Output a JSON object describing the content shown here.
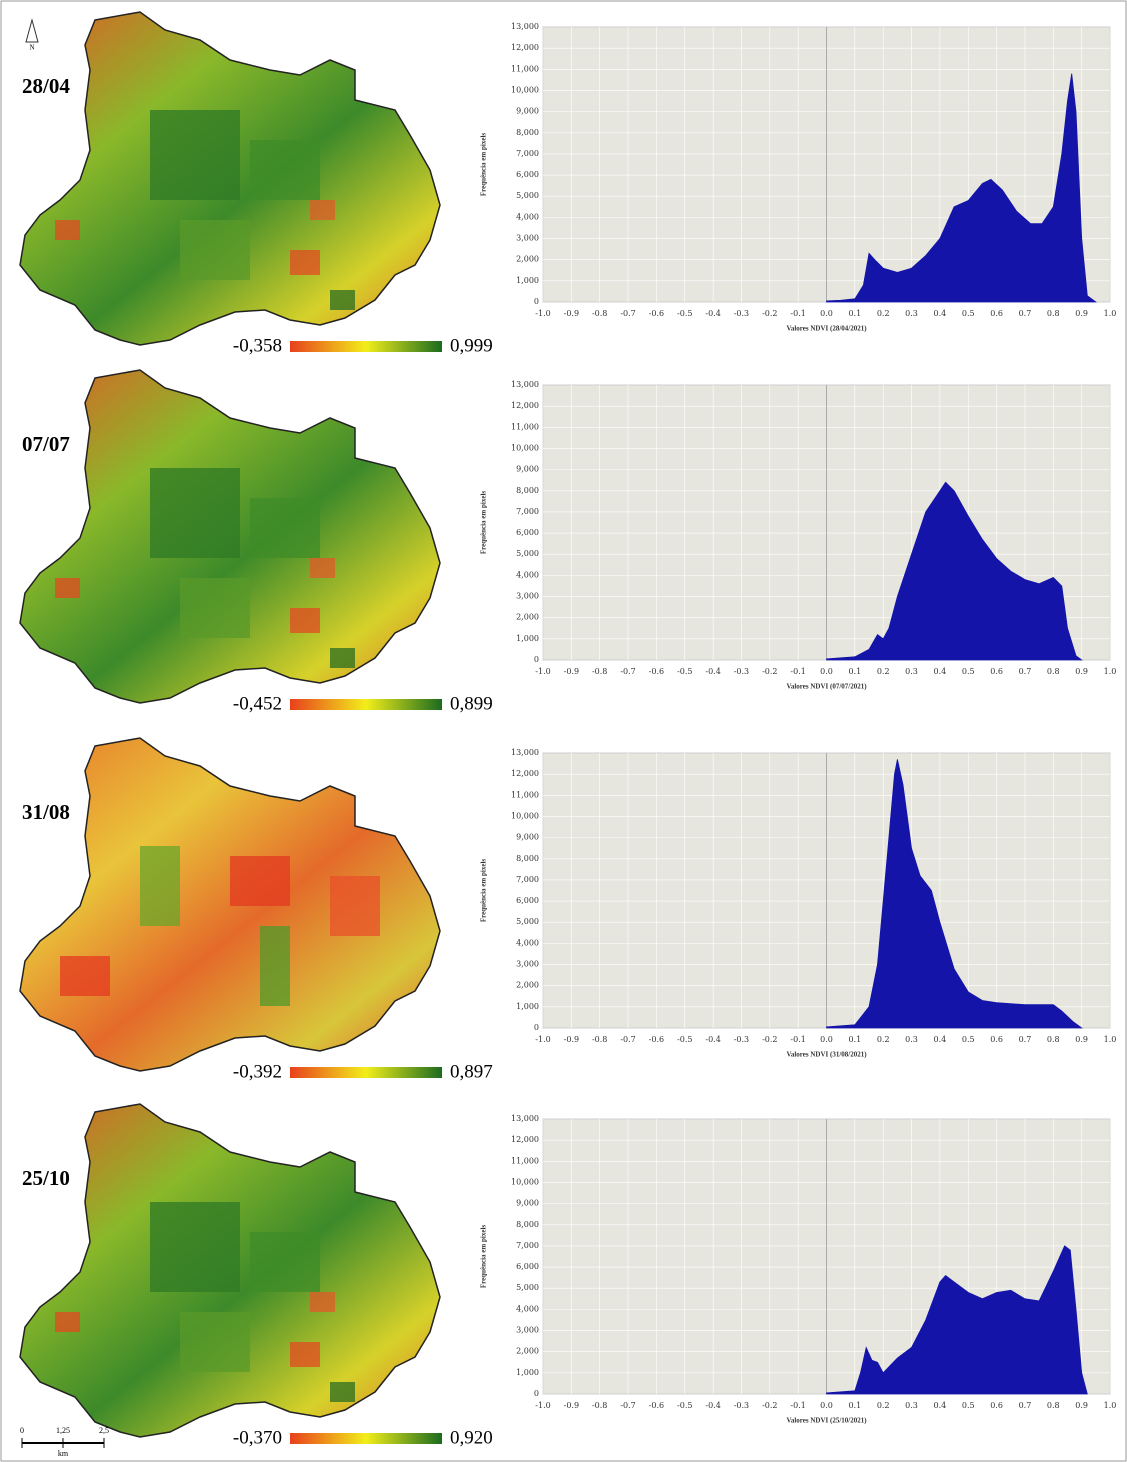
{
  "chart_data": [
    {
      "type": "area",
      "xlabel": "Valores NDVI (28/04/2021)",
      "ylabel": "Frequência em pixels",
      "color": "#1414a8",
      "grid": true,
      "xlim": [
        -1,
        1
      ],
      "ylim": [
        0,
        13000
      ],
      "xticks": [
        {
          "value": -1,
          "label": "-1.0"
        },
        -0.9,
        -0.8,
        -0.7,
        -0.6,
        -0.5,
        -0.4,
        -0.3,
        -0.2,
        -0.1,
        {
          "value": 0,
          "label": "0.0"
        },
        0.1,
        0.2,
        0.3,
        0.4,
        0.5,
        0.6,
        0.7,
        0.8,
        0.9,
        {
          "value": 1,
          "label": "1.0"
        }
      ],
      "yticks": [
        0,
        {
          "value": 1000,
          "label": "1,000"
        },
        {
          "value": 2000,
          "label": "2,000"
        },
        {
          "value": 3000,
          "label": "3,000"
        },
        {
          "value": 4000,
          "label": "4,000"
        },
        {
          "value": 5000,
          "label": "5,000"
        },
        {
          "value": 6000,
          "label": "6,000"
        },
        {
          "value": 7000,
          "label": "7,000"
        },
        {
          "value": 8000,
          "label": "8,000"
        },
        {
          "value": 9000,
          "label": "9,000"
        },
        {
          "value": 10000,
          "label": "10,000"
        },
        {
          "value": 11000,
          "label": "11,000"
        },
        {
          "value": 12000,
          "label": "12,000"
        },
        {
          "value": 13000,
          "label": "13,000"
        }
      ],
      "x": [
        0,
        0.05,
        0.1,
        0.13,
        0.15,
        0.17,
        0.2,
        0.25,
        0.3,
        0.35,
        0.4,
        0.45,
        0.5,
        0.55,
        0.58,
        0.62,
        0.67,
        0.72,
        0.76,
        0.8,
        0.83,
        0.85,
        0.865,
        0.88,
        0.9,
        0.92,
        0.95
      ],
      "values": [
        50,
        80,
        150,
        800,
        2300,
        2000,
        1600,
        1400,
        1600,
        2200,
        3000,
        4500,
        4800,
        5600,
        5800,
        5300,
        4300,
        3700,
        3700,
        4500,
        7000,
        9500,
        10800,
        9000,
        3000,
        300,
        0
      ]
    },
    {
      "type": "area",
      "xlabel": "Valores NDVI (07/07/2021)",
      "ylabel": "Frequência em pixels",
      "color": "#1414a8",
      "grid": true,
      "xlim": [
        -1,
        1
      ],
      "ylim": [
        0,
        13000
      ],
      "xticks": [
        {
          "value": -1,
          "label": "-1.0"
        },
        -0.9,
        -0.8,
        -0.7,
        -0.6,
        -0.5,
        -0.4,
        -0.3,
        -0.2,
        -0.1,
        {
          "value": 0,
          "label": "0.0"
        },
        0.1,
        0.2,
        0.3,
        0.4,
        0.5,
        0.6,
        0.7,
        0.8,
        0.9,
        {
          "value": 1,
          "label": "1.0"
        }
      ],
      "yticks": [
        0,
        {
          "value": 1000,
          "label": "1,000"
        },
        {
          "value": 2000,
          "label": "2,000"
        },
        {
          "value": 3000,
          "label": "3,000"
        },
        {
          "value": 4000,
          "label": "4,000"
        },
        {
          "value": 5000,
          "label": "5,000"
        },
        {
          "value": 6000,
          "label": "6,000"
        },
        {
          "value": 7000,
          "label": "7,000"
        },
        {
          "value": 8000,
          "label": "8,000"
        },
        {
          "value": 9000,
          "label": "9,000"
        },
        {
          "value": 10000,
          "label": "10,000"
        },
        {
          "value": 11000,
          "label": "11,000"
        },
        {
          "value": 12000,
          "label": "12,000"
        },
        {
          "value": 13000,
          "label": "13,000"
        }
      ],
      "x": [
        0,
        0.1,
        0.15,
        0.18,
        0.2,
        0.22,
        0.25,
        0.3,
        0.35,
        0.4,
        0.42,
        0.45,
        0.5,
        0.55,
        0.6,
        0.65,
        0.7,
        0.75,
        0.8,
        0.83,
        0.85,
        0.88,
        0.9
      ],
      "values": [
        50,
        150,
        500,
        1200,
        1000,
        1500,
        3000,
        5000,
        7000,
        8000,
        8400,
        8000,
        6800,
        5700,
        4800,
        4200,
        3800,
        3600,
        3900,
        3500,
        1500,
        200,
        0
      ]
    },
    {
      "type": "area",
      "xlabel": "Valores NDVI (31/08/2021)",
      "ylabel": "Frequência em pixels",
      "color": "#1414a8",
      "grid": true,
      "xlim": [
        -1,
        1
      ],
      "ylim": [
        0,
        13000
      ],
      "xticks": [
        {
          "value": -1,
          "label": "-1.0"
        },
        -0.9,
        -0.8,
        -0.7,
        -0.6,
        -0.5,
        -0.4,
        -0.3,
        -0.2,
        -0.1,
        {
          "value": 0,
          "label": "0.0"
        },
        0.1,
        0.2,
        0.3,
        0.4,
        0.5,
        0.6,
        0.7,
        0.8,
        0.9,
        {
          "value": 1,
          "label": "1.0"
        }
      ],
      "yticks": [
        0,
        {
          "value": 1000,
          "label": "1,000"
        },
        {
          "value": 2000,
          "label": "2,000"
        },
        {
          "value": 3000,
          "label": "3,000"
        },
        {
          "value": 4000,
          "label": "4,000"
        },
        {
          "value": 5000,
          "label": "5,000"
        },
        {
          "value": 6000,
          "label": "6,000"
        },
        {
          "value": 7000,
          "label": "7,000"
        },
        {
          "value": 8000,
          "label": "8,000"
        },
        {
          "value": 9000,
          "label": "9,000"
        },
        {
          "value": 10000,
          "label": "10,000"
        },
        {
          "value": 11000,
          "label": "11,000"
        },
        {
          "value": 12000,
          "label": "12,000"
        },
        {
          "value": 13000,
          "label": "13,000"
        }
      ],
      "x": [
        0,
        0.1,
        0.15,
        0.18,
        0.2,
        0.22,
        0.24,
        0.25,
        0.27,
        0.3,
        0.33,
        0.37,
        0.4,
        0.45,
        0.5,
        0.55,
        0.6,
        0.7,
        0.75,
        0.8,
        0.83,
        0.87,
        0.9
      ],
      "values": [
        50,
        150,
        1000,
        3000,
        6000,
        9000,
        12000,
        12700,
        11500,
        8500,
        7200,
        6500,
        5000,
        2800,
        1700,
        1300,
        1200,
        1100,
        1100,
        1100,
        800,
        300,
        0
      ]
    },
    {
      "type": "area",
      "xlabel": "Valores NDVI (25/10/2021)",
      "ylabel": "Frequência em pixels",
      "color": "#1414a8",
      "grid": true,
      "xlim": [
        -1,
        1
      ],
      "ylim": [
        0,
        13000
      ],
      "xticks": [
        {
          "value": -1,
          "label": "-1.0"
        },
        -0.9,
        -0.8,
        -0.7,
        -0.6,
        -0.5,
        -0.4,
        -0.3,
        -0.2,
        -0.1,
        {
          "value": 0,
          "label": "0.0"
        },
        0.1,
        0.2,
        0.3,
        0.4,
        0.5,
        0.6,
        0.7,
        0.8,
        0.9,
        {
          "value": 1,
          "label": "1.0"
        }
      ],
      "yticks": [
        0,
        {
          "value": 1000,
          "label": "1,000"
        },
        {
          "value": 2000,
          "label": "2,000"
        },
        {
          "value": 3000,
          "label": "3,000"
        },
        {
          "value": 4000,
          "label": "4,000"
        },
        {
          "value": 5000,
          "label": "5,000"
        },
        {
          "value": 6000,
          "label": "6,000"
        },
        {
          "value": 7000,
          "label": "7,000"
        },
        {
          "value": 8000,
          "label": "8,000"
        },
        {
          "value": 9000,
          "label": "9,000"
        },
        {
          "value": 10000,
          "label": "10,000"
        },
        {
          "value": 11000,
          "label": "11,000"
        },
        {
          "value": 12000,
          "label": "12,000"
        },
        {
          "value": 13000,
          "label": "13,000"
        }
      ],
      "x": [
        0,
        0.1,
        0.12,
        0.14,
        0.16,
        0.18,
        0.2,
        0.25,
        0.3,
        0.35,
        0.4,
        0.42,
        0.45,
        0.5,
        0.55,
        0.6,
        0.65,
        0.7,
        0.75,
        0.8,
        0.84,
        0.86,
        0.88,
        0.9,
        0.92
      ],
      "values": [
        50,
        150,
        1000,
        2200,
        1600,
        1500,
        1000,
        1700,
        2200,
        3500,
        5300,
        5600,
        5300,
        4800,
        4500,
        4800,
        4900,
        4500,
        4400,
        5800,
        7000,
        6800,
        4000,
        1000,
        0
      ]
    }
  ],
  "maps": [
    {
      "date": "28/04",
      "legend_min": "-0,358",
      "legend_max": "0,999"
    },
    {
      "date": "07/07",
      "legend_min": "-0,452",
      "legend_max": "0,899"
    },
    {
      "date": "31/08",
      "legend_min": "-0,392",
      "legend_max": "0,897"
    },
    {
      "date": "25/10",
      "legend_min": "-0,370",
      "legend_max": "0,920"
    }
  ],
  "north": "N",
  "scale_bar": {
    "ticks": [
      "0",
      "1,25",
      "2,5"
    ],
    "unit": "km"
  }
}
